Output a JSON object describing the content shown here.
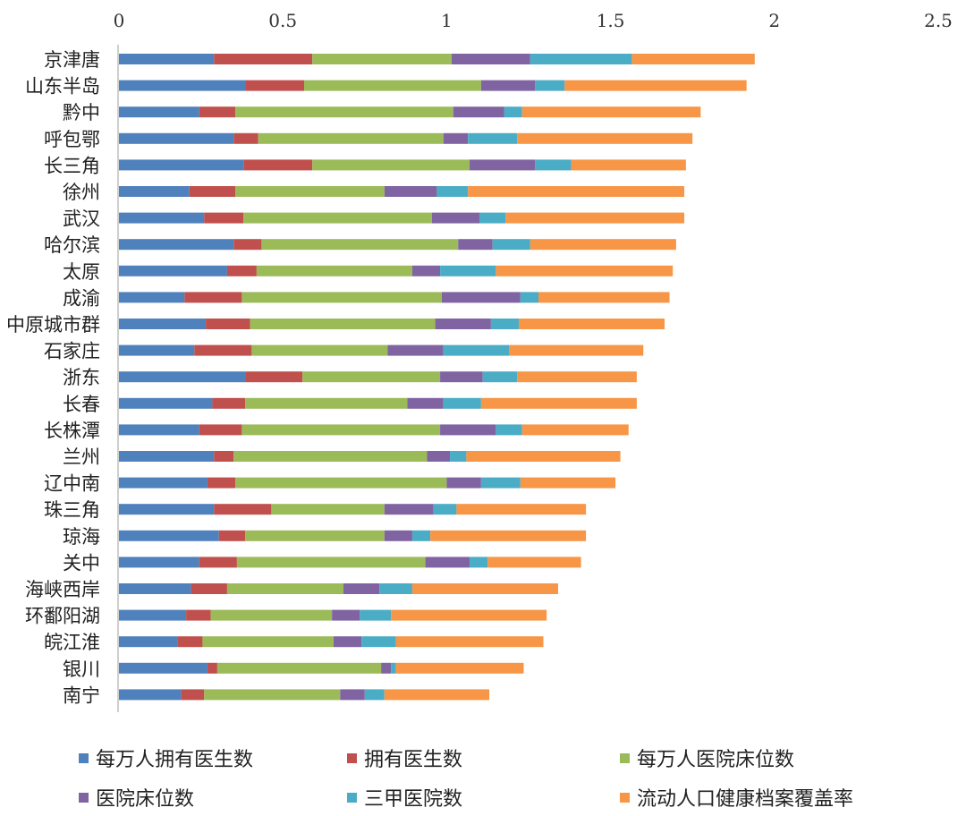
{
  "chart_data": {
    "type": "bar",
    "orientation": "horizontal",
    "stacked": true,
    "title": "",
    "xlabel": "",
    "ylabel": "",
    "xlim": [
      0,
      2.5
    ],
    "xticks": [
      "0",
      "0.5",
      "1",
      "1.5",
      "2",
      "2.5"
    ],
    "grid": false,
    "legend_position": "bottom",
    "categories": [
      "京津唐",
      "山东半岛",
      "黔中",
      "呼包鄂",
      "长三角",
      "徐州",
      "武汉",
      "哈尔滨",
      "太原",
      "成渝",
      "中原城市群",
      "石家庄",
      "浙东",
      "长春",
      "长株潭",
      "兰州",
      "辽中南",
      "珠三角",
      "琼海",
      "关中",
      "海峡西岸",
      "环鄱阳湖",
      "皖江淮",
      "银川",
      "南宁"
    ],
    "series": [
      {
        "name": "每万人拥有医生数",
        "color": "#4f81bd",
        "values": [
          0.29,
          0.385,
          0.245,
          0.35,
          0.38,
          0.215,
          0.26,
          0.35,
          0.33,
          0.2,
          0.265,
          0.23,
          0.385,
          0.285,
          0.245,
          0.29,
          0.27,
          0.29,
          0.305,
          0.245,
          0.22,
          0.205,
          0.18,
          0.27,
          0.19
        ]
      },
      {
        "name": "拥有医生数",
        "color": "#c0504d",
        "values": [
          0.3,
          0.18,
          0.11,
          0.075,
          0.21,
          0.14,
          0.12,
          0.085,
          0.09,
          0.175,
          0.135,
          0.175,
          0.175,
          0.1,
          0.13,
          0.06,
          0.085,
          0.175,
          0.08,
          0.115,
          0.11,
          0.075,
          0.075,
          0.03,
          0.07
        ]
      },
      {
        "name": "每万人医院床位数",
        "color": "#9bbb59",
        "values": [
          0.425,
          0.54,
          0.665,
          0.565,
          0.48,
          0.455,
          0.575,
          0.6,
          0.475,
          0.61,
          0.565,
          0.415,
          0.42,
          0.495,
          0.605,
          0.59,
          0.645,
          0.345,
          0.425,
          0.575,
          0.355,
          0.37,
          0.4,
          0.5,
          0.415
        ]
      },
      {
        "name": "医院床位数",
        "color": "#8064a2",
        "values": [
          0.24,
          0.165,
          0.155,
          0.075,
          0.2,
          0.16,
          0.145,
          0.105,
          0.085,
          0.24,
          0.17,
          0.17,
          0.13,
          0.11,
          0.17,
          0.07,
          0.105,
          0.15,
          0.085,
          0.135,
          0.11,
          0.085,
          0.085,
          0.03,
          0.075
        ]
      },
      {
        "name": "三甲医院数",
        "color": "#4bacc6",
        "values": [
          0.31,
          0.09,
          0.055,
          0.15,
          0.11,
          0.095,
          0.08,
          0.115,
          0.17,
          0.055,
          0.085,
          0.2,
          0.105,
          0.115,
          0.08,
          0.05,
          0.12,
          0.07,
          0.055,
          0.055,
          0.1,
          0.095,
          0.105,
          0.015,
          0.06
        ]
      },
      {
        "name": "流动人口健康档案覆盖率",
        "color": "#f79646",
        "values": [
          0.375,
          0.555,
          0.545,
          0.535,
          0.35,
          0.66,
          0.545,
          0.445,
          0.54,
          0.4,
          0.445,
          0.41,
          0.365,
          0.475,
          0.325,
          0.47,
          0.29,
          0.395,
          0.475,
          0.285,
          0.445,
          0.475,
          0.45,
          0.39,
          0.32
        ]
      }
    ]
  }
}
